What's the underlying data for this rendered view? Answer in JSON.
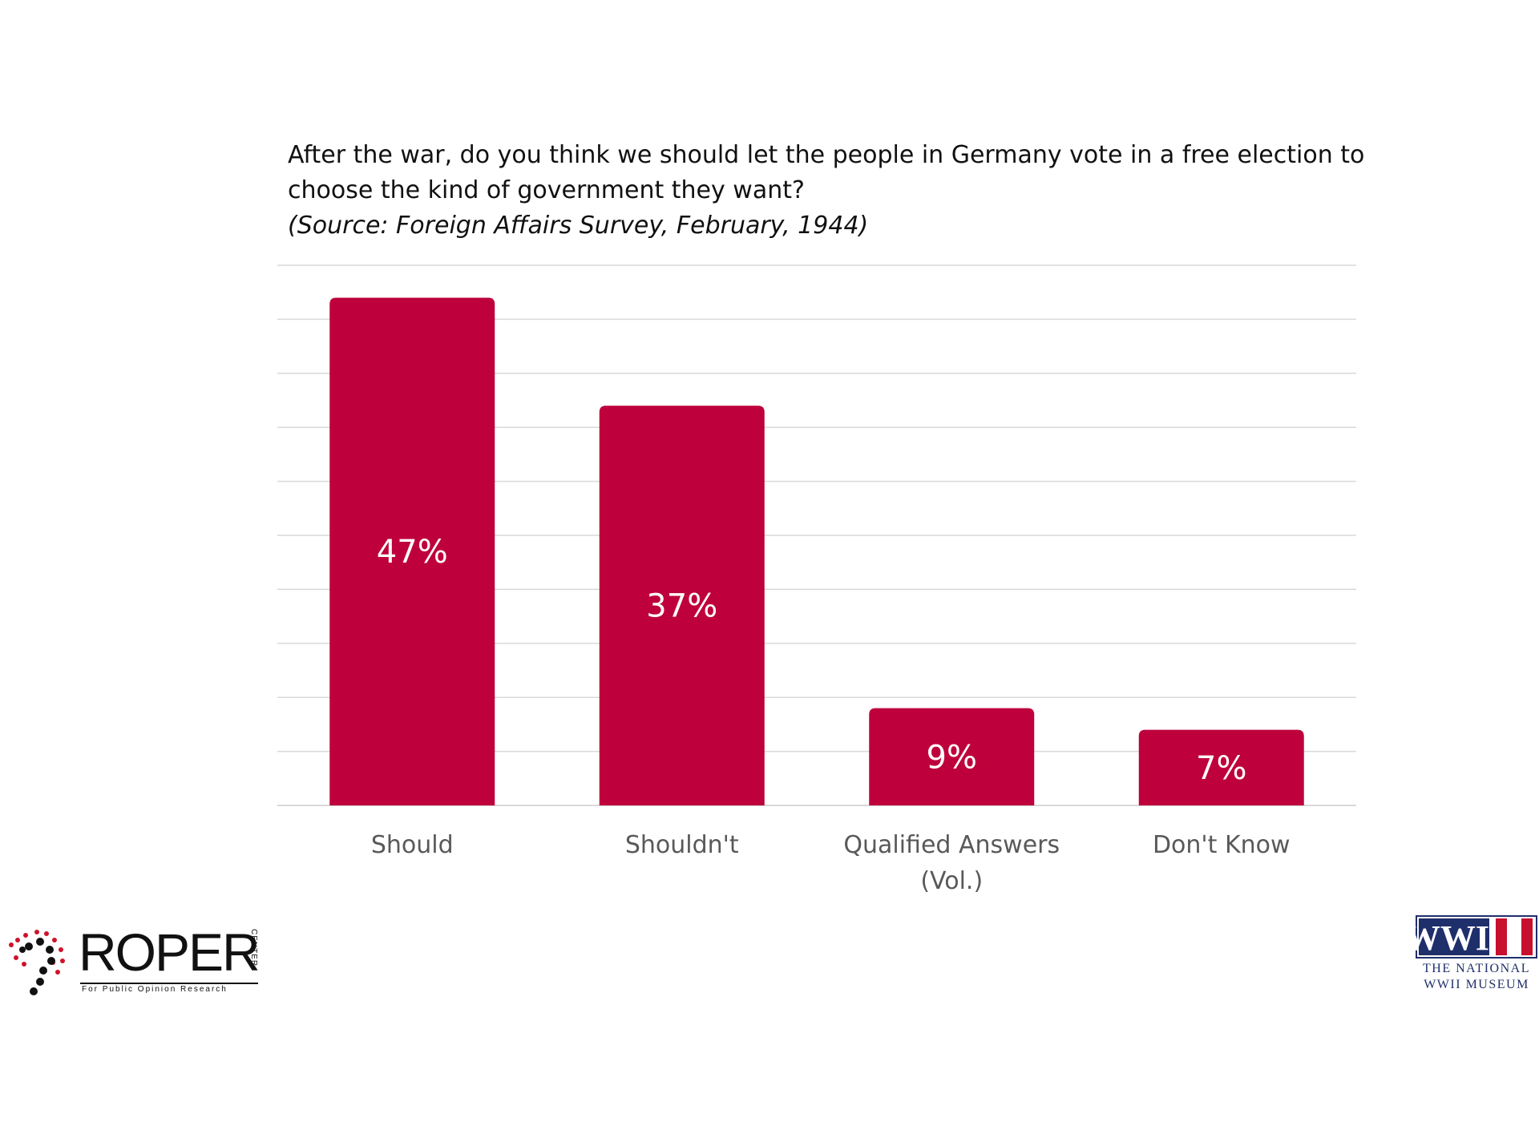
{
  "question": {
    "line1": "After the war, do you think we should let the people in Germany vote in a free election to",
    "line2": "choose the kind of government they want?",
    "source": "(Source: Foreign Affairs Survey, February, 1944)"
  },
  "chart_data": {
    "type": "bar",
    "title": "After the war, do you think we should let the people in Germany vote in a free election to choose the kind of government they want?",
    "categories": [
      [
        "Should"
      ],
      [
        "Shouldn't"
      ],
      [
        "Qualified Answers",
        "(Vol.)"
      ],
      [
        "Don't Know"
      ]
    ],
    "values": [
      47,
      37,
      9,
      7
    ],
    "value_labels": [
      "47%",
      "37%",
      "9%",
      "7%"
    ],
    "ylim": [
      0,
      50
    ],
    "grid": true,
    "bar_color": "#be003c",
    "grid_color": "#d9d9d9"
  },
  "logos": {
    "roper": {
      "word": "ROPER",
      "side": "CENTER",
      "tagline": "For Public Opinion Research"
    },
    "wwii": {
      "mark": "WWII",
      "line1": "THE NATIONAL",
      "line2": "WWII MUSEUM"
    }
  }
}
